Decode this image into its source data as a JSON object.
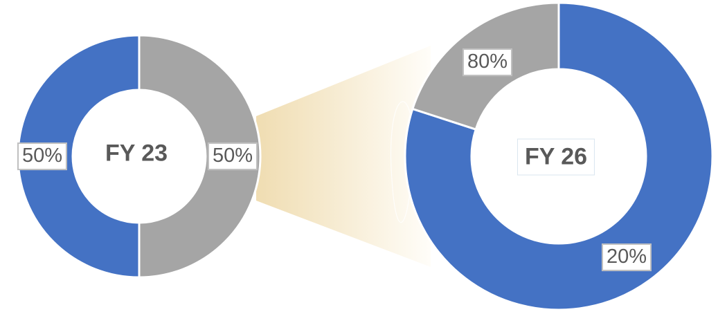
{
  "chart_data": [
    {
      "type": "pie",
      "title": "FY 23",
      "slices": [
        {
          "label": "50%",
          "value": 50,
          "color": "#a5a5a5"
        },
        {
          "label": "50%",
          "value": 50,
          "color": "#4472c4"
        }
      ]
    },
    {
      "type": "pie",
      "title": "FY 26",
      "slices": [
        {
          "label": "80%",
          "value": 80,
          "color": "#4472c4"
        },
        {
          "label": "20%",
          "value": 20,
          "color": "#a5a5a5"
        }
      ]
    }
  ],
  "connector_colors": {
    "start": "#eed9a9",
    "end": "#fffdf8"
  }
}
